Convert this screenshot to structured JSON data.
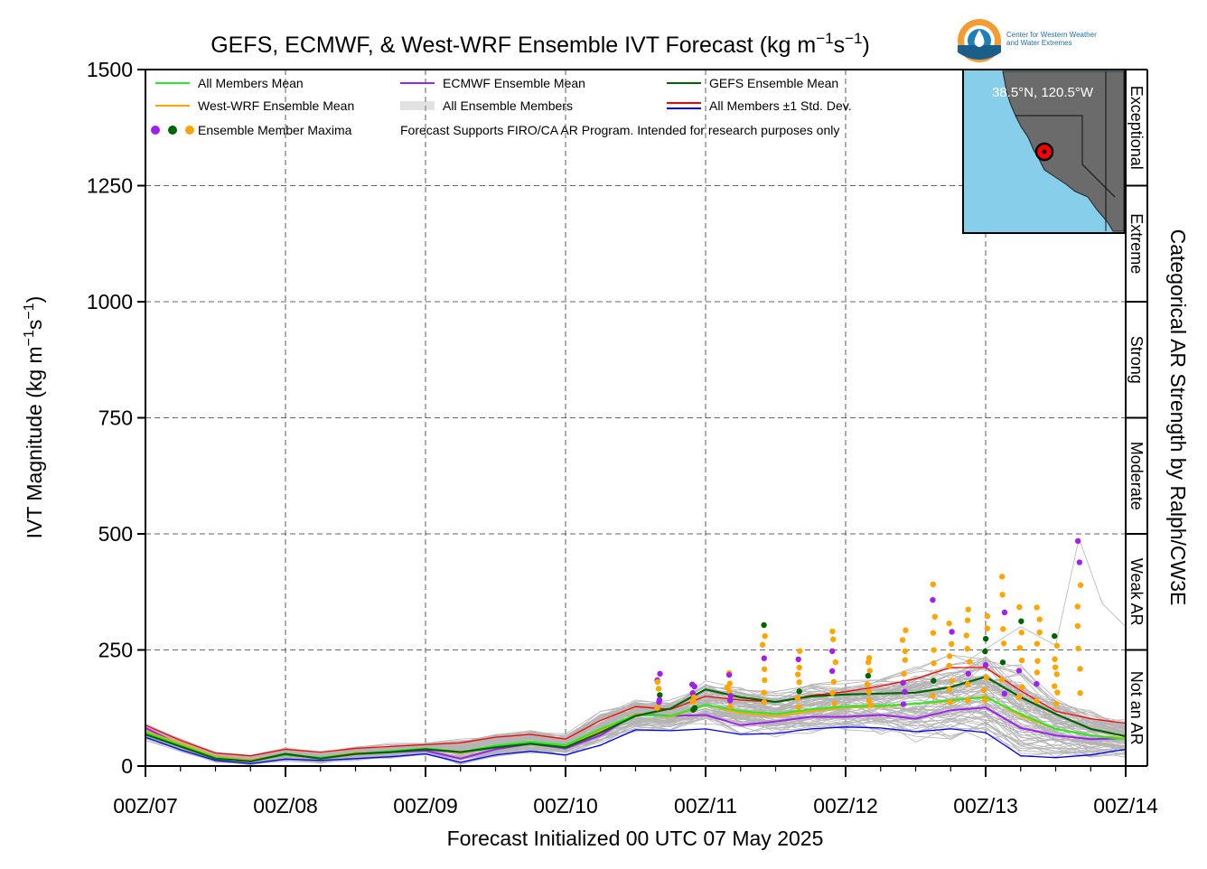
{
  "chart_data": {
    "type": "line",
    "title_prefix": "GEFS, ECMWF, & West-WRF Ensemble IVT Forecast (kg m",
    "title_exp1": "−1",
    "title_mid": "s",
    "title_exp2": "−1",
    "title_suffix": ")",
    "xlabel": "Forecast Initialized 00 UTC 07 May 2025",
    "ylabel_prefix": "IVT Magnitude (kg m",
    "ylabel_exp1": "−1",
    "ylabel_mid": "s",
    "ylabel_exp2": "−1",
    "ylabel_suffix": ")",
    "right_label": "Categorical AR Strength by Ralph/CW3E",
    "ylim": [
      0,
      1500
    ],
    "xlim": [
      0,
      168
    ],
    "x_unit": "forecast hour",
    "yticks": [
      0,
      250,
      500,
      750,
      1000,
      1250,
      1500
    ],
    "xticks": [
      0,
      24,
      48,
      72,
      96,
      120,
      144,
      168
    ],
    "xtick_labels": [
      "00Z/07",
      "00Z/08",
      "00Z/09",
      "00Z/10",
      "00Z/11",
      "00Z/12",
      "00Z/13",
      "00Z/14"
    ],
    "grid": true,
    "categories": [
      {
        "label": "Not an AR",
        "range": [
          0,
          250
        ]
      },
      {
        "label": "Weak AR",
        "range": [
          250,
          500
        ]
      },
      {
        "label": "Moderate",
        "range": [
          500,
          750
        ]
      },
      {
        "label": "Strong",
        "range": [
          750,
          1000
        ]
      },
      {
        "label": "Extreme",
        "range": [
          1000,
          1250
        ]
      },
      {
        "label": "Exceptional",
        "range": [
          1250,
          1500
        ]
      }
    ],
    "legend": [
      {
        "label": "All Members Mean",
        "color": "#22ee22",
        "kind": "line"
      },
      {
        "label": "ECMWF Ensemble Mean",
        "color": "#a020f0",
        "kind": "line"
      },
      {
        "label": "GEFS Ensemble Mean",
        "color": "#006400",
        "kind": "line"
      },
      {
        "label": "West-WRF Ensemble Mean",
        "color": "#ffa500",
        "kind": "line"
      },
      {
        "label": "All Ensemble Members",
        "color": "#b0b0b0",
        "kind": "multiline"
      },
      {
        "label": "All Members ±1 Std. Dev.",
        "color": "#ff0000",
        "color2": "#0000ff",
        "kind": "pair"
      },
      {
        "label": "Ensemble Member Maxima",
        "colors": [
          "#a020f0",
          "#006400",
          "#ffa500"
        ],
        "kind": "dots"
      }
    ],
    "note": "Forecast Supports FIRO/CA AR Program. Intended for research purposes only",
    "location": "38.5°N, 120.5°W",
    "x": [
      0,
      6,
      12,
      18,
      24,
      30,
      36,
      42,
      48,
      54,
      60,
      66,
      72,
      78,
      84,
      90,
      96,
      102,
      108,
      114,
      120,
      126,
      132,
      138,
      144,
      150,
      156,
      162,
      168
    ],
    "series": [
      {
        "name": "All Members +1 Std. Dev.",
        "color": "#ff0000",
        "width": 1.3,
        "values": [
          88,
          55,
          28,
          22,
          36,
          30,
          38,
          42,
          46,
          50,
          62,
          68,
          58,
          98,
          128,
          122,
          150,
          142,
          138,
          152,
          160,
          172,
          188,
          212,
          212,
          162,
          118,
          102,
          92
        ]
      },
      {
        "name": "All Members -1 Std. Dev.",
        "color": "#0000ff",
        "width": 1.3,
        "values": [
          62,
          35,
          12,
          5,
          15,
          12,
          16,
          20,
          26,
          8,
          24,
          32,
          24,
          45,
          78,
          76,
          80,
          68,
          70,
          80,
          84,
          82,
          74,
          80,
          72,
          22,
          18,
          24,
          36
        ]
      },
      {
        "name": "ECMWF Ensemble Mean",
        "color": "#a020f0",
        "width": 2.0,
        "values": [
          82,
          45,
          20,
          12,
          24,
          18,
          26,
          30,
          33,
          16,
          36,
          48,
          38,
          66,
          112,
          108,
          110,
          88,
          96,
          106,
          106,
          110,
          102,
          120,
          126,
          82,
          66,
          58,
          60
        ]
      },
      {
        "name": "West-WRF Ensemble Mean",
        "color": "#ffa500",
        "width": 2.0,
        "values": [
          75,
          48,
          20,
          12,
          26,
          18,
          28,
          30,
          38,
          28,
          42,
          52,
          42,
          76,
          112,
          106,
          132,
          114,
          108,
          118,
          126,
          128,
          134,
          140,
          150,
          108,
          80,
          66,
          60
        ]
      },
      {
        "name": "All Members Mean",
        "color": "#22ee22",
        "width": 2.0,
        "values": [
          72,
          45,
          18,
          10,
          24,
          18,
          26,
          32,
          38,
          30,
          44,
          52,
          45,
          80,
          110,
          108,
          132,
          118,
          112,
          122,
          128,
          130,
          134,
          142,
          148,
          112,
          80,
          66,
          58
        ]
      },
      {
        "name": "GEFS Ensemble Mean",
        "color": "#006400",
        "width": 2.2,
        "values": [
          68,
          42,
          16,
          10,
          26,
          16,
          26,
          30,
          36,
          30,
          40,
          48,
          40,
          72,
          108,
          124,
          165,
          148,
          138,
          150,
          154,
          156,
          158,
          170,
          192,
          148,
          112,
          80,
          64
        ]
      }
    ],
    "members_count": 90,
    "maxima_columns": [
      {
        "x": 88,
        "ymax": 205
      },
      {
        "x": 94,
        "ymax": 180
      },
      {
        "x": 100,
        "ymax": 210
      },
      {
        "x": 106,
        "ymax": 310
      },
      {
        "x": 112,
        "ymax": 250
      },
      {
        "x": 118,
        "ymax": 295
      },
      {
        "x": 124,
        "ymax": 240
      },
      {
        "x": 130,
        "ymax": 295
      },
      {
        "x": 135,
        "ymax": 395
      },
      {
        "x": 138,
        "ymax": 315
      },
      {
        "x": 141,
        "ymax": 345
      },
      {
        "x": 144,
        "ymax": 330
      },
      {
        "x": 147,
        "ymax": 410
      },
      {
        "x": 150,
        "ymax": 350
      },
      {
        "x": 153,
        "ymax": 350
      },
      {
        "x": 156,
        "ymax": 280
      },
      {
        "x": 160,
        "ymax": 490
      }
    ]
  },
  "branding": {
    "org_line1": "Center for Western Weather",
    "org_line2": "and Water Extremes"
  }
}
